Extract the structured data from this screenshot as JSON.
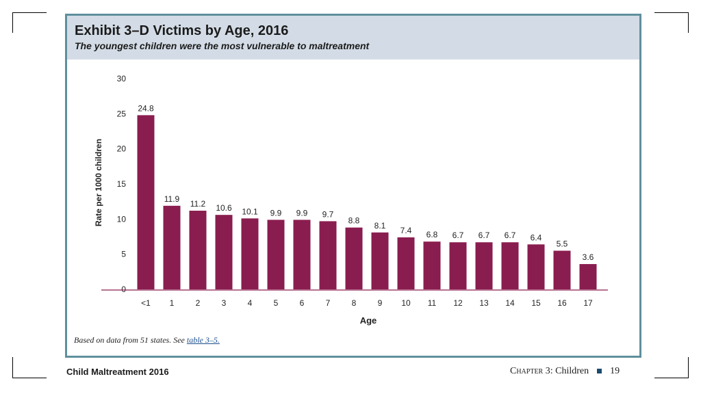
{
  "exhibit": {
    "title": "Exhibit 3–D Victims by Age, 2016",
    "subtitle": "The youngest children were the most vulnerable to maltreatment",
    "footnote_text": "Based on data from 51 states. See ",
    "footnote_link": "table 3–5."
  },
  "footer": {
    "left": "Child Maltreatment 2016",
    "chapter_word": "Chapter",
    "chapter_rest": " 3: Children",
    "page": "19"
  },
  "colors": {
    "bar": "#8a1d4f",
    "axis": "#8a1d4f",
    "border": "#5e8f9c",
    "header": "#d3dce6"
  },
  "chart_data": {
    "type": "bar",
    "categories": [
      "<1",
      "1",
      "2",
      "3",
      "4",
      "5",
      "6",
      "7",
      "8",
      "9",
      "10",
      "11",
      "12",
      "13",
      "14",
      "15",
      "16",
      "17"
    ],
    "values": [
      24.8,
      11.9,
      11.2,
      10.6,
      10.1,
      9.9,
      9.9,
      9.7,
      8.8,
      8.1,
      7.4,
      6.8,
      6.7,
      6.7,
      6.7,
      6.4,
      5.5,
      3.6
    ],
    "value_labels": [
      "24.8",
      "11.9",
      "11.2",
      "10.6",
      "10.1",
      "9.9",
      "9.9",
      "9.7",
      "8.8",
      "8.1",
      "7.4",
      "6.8",
      "6.7",
      "6.7",
      "6.7",
      "6.4",
      "5.5",
      "3.6"
    ],
    "xlabel": "Age",
    "ylabel": "Rate per 1000 children",
    "ylim": [
      0,
      30
    ],
    "yticks": [
      0,
      5,
      10,
      15,
      20,
      25,
      30
    ],
    "grid": false,
    "legend": "none"
  }
}
